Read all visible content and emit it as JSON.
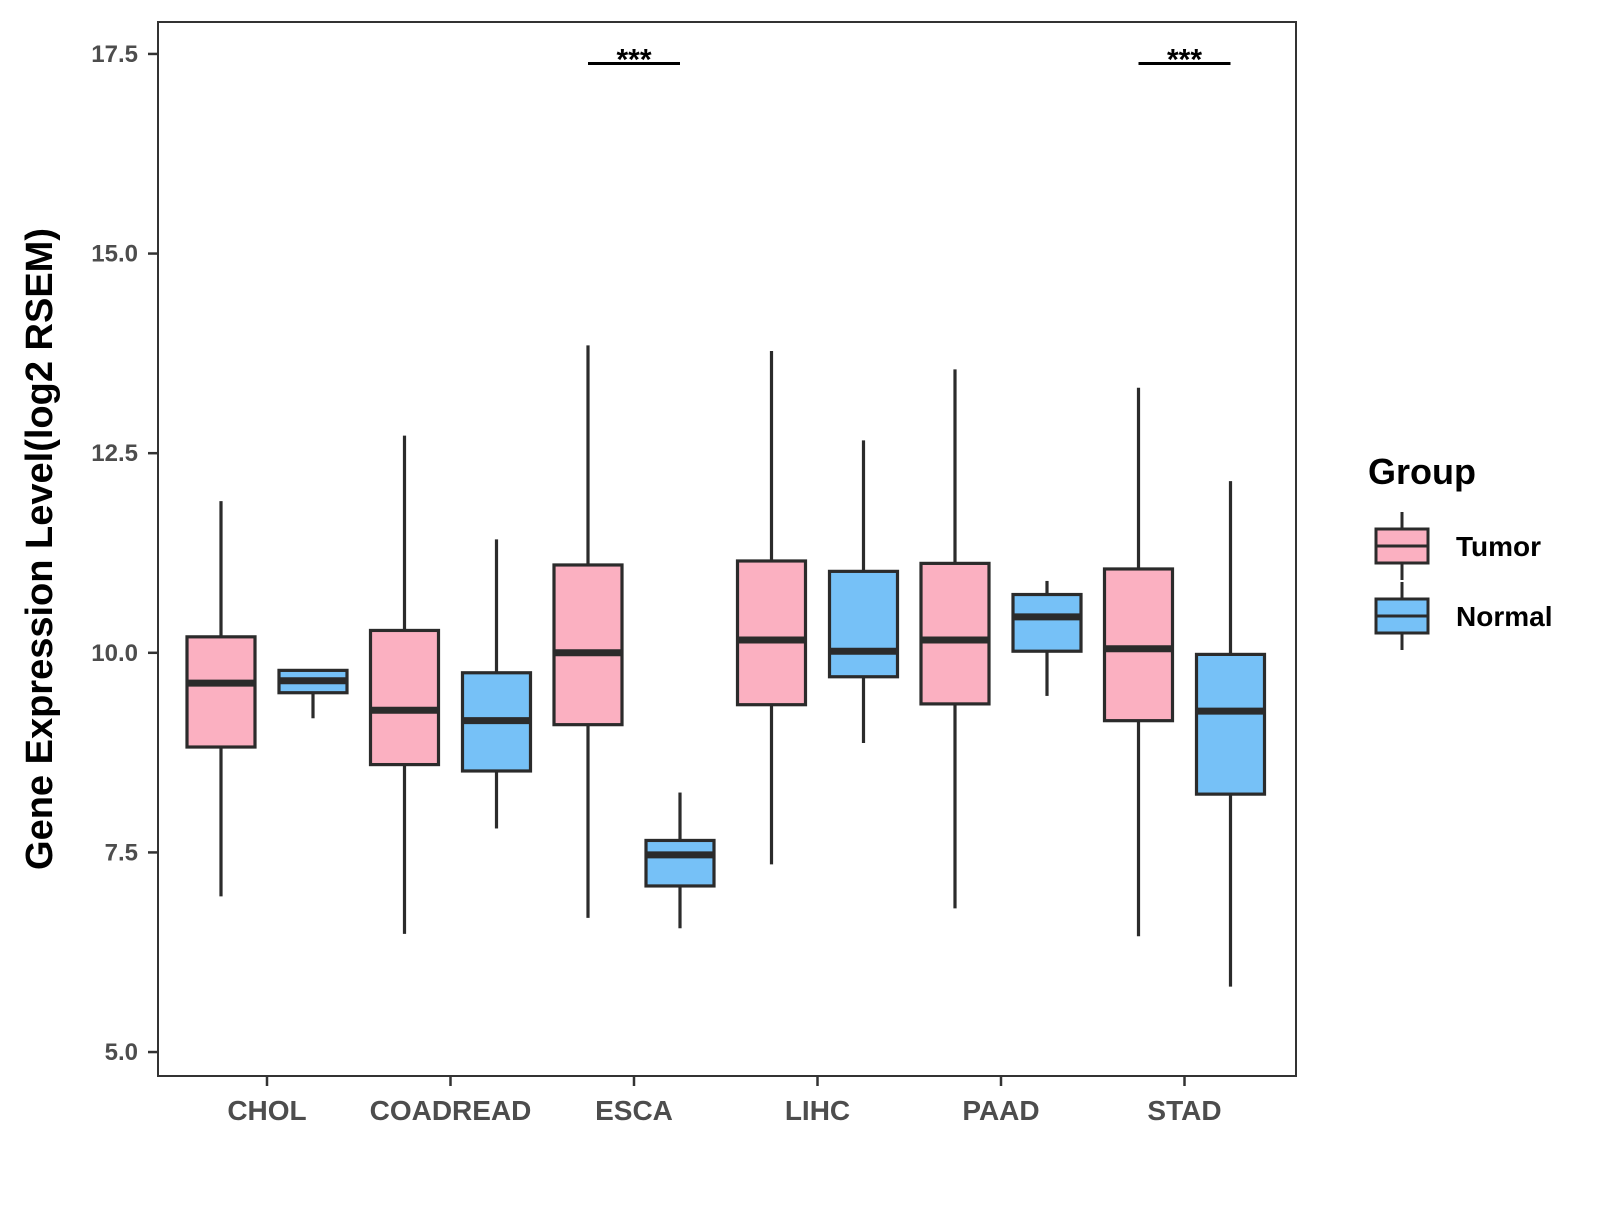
{
  "chart_data": {
    "type": "boxplot",
    "title": "",
    "xlabel": "",
    "ylabel": "Gene Expression Level(log2 RSEM)",
    "ylim": [
      4.7,
      17.9
    ],
    "yticks": [
      5.0,
      7.5,
      10.0,
      12.5,
      15.0,
      17.5
    ],
    "ytick_labels": [
      "5.0",
      "7.5",
      "10.0",
      "12.5",
      "15.0",
      "17.5"
    ],
    "categories": [
      "CHOL",
      "COADREAD",
      "ESCA",
      "LIHC",
      "PAAD",
      "STAD"
    ],
    "grid": false,
    "legend": {
      "title": "Group",
      "position": "right",
      "entries": [
        {
          "name": "Tumor",
          "color": "#fbb0c1"
        },
        {
          "name": "Normal",
          "color": "#76c1f7"
        }
      ]
    },
    "series": [
      {
        "name": "Tumor",
        "color": "#fbb0c1",
        "boxes": [
          {
            "category": "CHOL",
            "whisker_low": 6.95,
            "q1": 8.82,
            "median": 9.62,
            "q3": 10.2,
            "whisker_high": 11.9
          },
          {
            "category": "COADREAD",
            "whisker_low": 6.48,
            "q1": 8.6,
            "median": 9.28,
            "q3": 10.28,
            "whisker_high": 12.72
          },
          {
            "category": "ESCA",
            "whisker_low": 6.68,
            "q1": 9.1,
            "median": 10.0,
            "q3": 11.1,
            "whisker_high": 13.85
          },
          {
            "category": "LIHC",
            "whisker_low": 7.35,
            "q1": 9.35,
            "median": 10.16,
            "q3": 11.15,
            "whisker_high": 13.78
          },
          {
            "category": "PAAD",
            "whisker_low": 6.8,
            "q1": 9.36,
            "median": 10.16,
            "q3": 11.12,
            "whisker_high": 13.55
          },
          {
            "category": "STAD",
            "whisker_low": 6.45,
            "q1": 9.15,
            "median": 10.05,
            "q3": 11.05,
            "whisker_high": 13.32
          }
        ]
      },
      {
        "name": "Normal",
        "color": "#76c1f7",
        "boxes": [
          {
            "category": "CHOL",
            "whisker_low": 9.18,
            "q1": 9.5,
            "median": 9.65,
            "q3": 9.78,
            "whisker_high": 9.78
          },
          {
            "category": "COADREAD",
            "whisker_low": 7.8,
            "q1": 8.52,
            "median": 9.15,
            "q3": 9.75,
            "whisker_high": 11.42
          },
          {
            "category": "ESCA",
            "whisker_low": 6.55,
            "q1": 7.08,
            "median": 7.47,
            "q3": 7.65,
            "whisker_high": 8.25
          },
          {
            "category": "LIHC",
            "whisker_low": 8.87,
            "q1": 9.7,
            "median": 10.02,
            "q3": 11.02,
            "whisker_high": 12.66
          },
          {
            "category": "PAAD",
            "whisker_low": 9.46,
            "q1": 10.02,
            "median": 10.45,
            "q3": 10.73,
            "whisker_high": 10.9
          },
          {
            "category": "STAD",
            "whisker_low": 5.82,
            "q1": 8.23,
            "median": 9.27,
            "q3": 9.98,
            "whisker_high": 12.15
          }
        ]
      }
    ],
    "annotations": [
      {
        "category": "ESCA",
        "label": "***",
        "y": 17.38
      },
      {
        "category": "STAD",
        "label": "***",
        "y": 17.38
      }
    ]
  }
}
